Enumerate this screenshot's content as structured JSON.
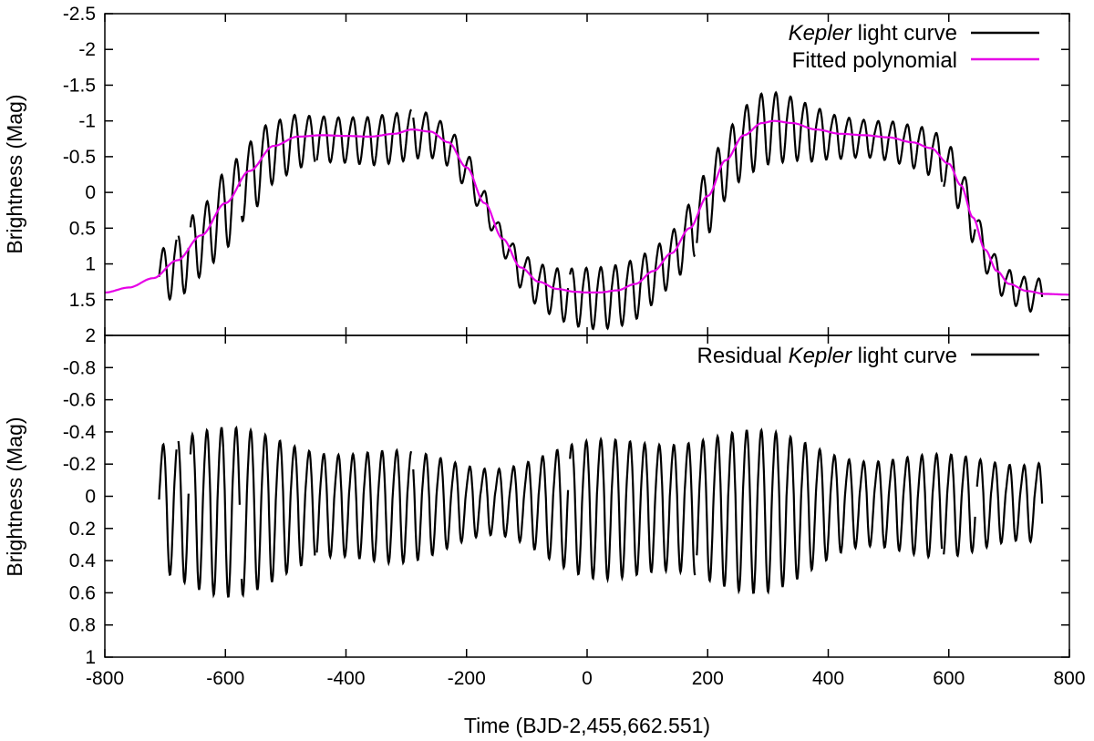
{
  "chart_data": [
    {
      "type": "line",
      "panel": "top",
      "ylabel": "Brightness (Mag)",
      "xlim": [
        -800,
        800
      ],
      "ylim": [
        -2.5,
        2
      ],
      "y_inverted": true,
      "grid": false,
      "legend_position": "top-right",
      "y_ticks": [
        "-2.5",
        "-2",
        "-1.5",
        "-1",
        "-0.5",
        "0",
        "0.5",
        "1",
        "1.5",
        "2"
      ],
      "y_tick_values": [
        -2.5,
        -2,
        -1.5,
        -1,
        -0.5,
        0,
        0.5,
        1,
        1.5,
        2
      ],
      "legend": [
        {
          "italic": "Kepler",
          "rest": " light curve",
          "color": "#000000"
        },
        {
          "italic": "",
          "rest": "Fitted polynomial",
          "color": "#e600e6"
        }
      ],
      "series": [
        {
          "name": "Kepler light curve",
          "color": "#000000",
          "description": "oscillation of ~24-day period around the fitted polynomial",
          "x_range": [
            -710,
            755
          ],
          "gaps": [
            -680,
            -660,
            -575,
            -450,
            -290,
            -30,
            180,
            590,
            645
          ]
        },
        {
          "name": "Fitted polynomial",
          "color": "#e600e6",
          "x": [
            -800,
            -760,
            -720,
            -680,
            -640,
            -600,
            -560,
            -520,
            -480,
            -440,
            -400,
            -360,
            -320,
            -290,
            -260,
            -230,
            -200,
            -170,
            -140,
            -110,
            -80,
            -50,
            -20,
            0,
            20,
            50,
            80,
            110,
            140,
            170,
            200,
            230,
            260,
            290,
            310,
            340,
            380,
            420,
            460,
            500,
            540,
            570,
            600,
            620,
            640,
            660,
            680,
            700,
            730,
            760,
            800
          ],
          "y": [
            1.4,
            1.33,
            1.2,
            0.95,
            0.6,
            0.15,
            -0.3,
            -0.65,
            -0.78,
            -0.8,
            -0.79,
            -0.78,
            -0.82,
            -0.88,
            -0.85,
            -0.7,
            -0.35,
            0.15,
            0.65,
            1.05,
            1.25,
            1.35,
            1.39,
            1.4,
            1.4,
            1.37,
            1.28,
            1.1,
            0.85,
            0.5,
            0.05,
            -0.45,
            -0.8,
            -0.97,
            -1.0,
            -0.97,
            -0.88,
            -0.82,
            -0.8,
            -0.77,
            -0.7,
            -0.62,
            -0.4,
            -0.1,
            0.35,
            0.8,
            1.1,
            1.28,
            1.38,
            1.42,
            1.43
          ]
        }
      ]
    },
    {
      "type": "line",
      "panel": "bottom",
      "xlabel": "Time (BJD-2,455,662.551)",
      "ylabel": "Brightness (Mag)",
      "xlim": [
        -800,
        800
      ],
      "ylim": [
        -1.0,
        1.0
      ],
      "y_inverted": true,
      "grid": false,
      "legend_position": "top-right",
      "x_ticks": [
        "-800",
        "-600",
        "-400",
        "-200",
        "0",
        "200",
        "400",
        "600",
        "800"
      ],
      "x_tick_values": [
        -800,
        -600,
        -400,
        -200,
        0,
        200,
        400,
        600,
        800
      ],
      "y_ticks": [
        "-0.8",
        "-0.6",
        "-0.4",
        "-0.2",
        "0",
        "0.2",
        "0.4",
        "0.6",
        "0.8",
        "1"
      ],
      "y_tick_values": [
        -0.8,
        -0.6,
        -0.4,
        -0.2,
        0,
        0.2,
        0.4,
        0.6,
        0.8,
        1
      ],
      "legend": [
        {
          "prefix": "Residual ",
          "italic": "Kepler",
          "rest": " light curve",
          "color": "#000000"
        }
      ],
      "series": [
        {
          "name": "Residual Kepler light curve",
          "color": "#000000",
          "description": "residual oscillation, amplitude ~0.3-0.6 mag, ~24-day period",
          "x_range": [
            -710,
            755
          ]
        }
      ]
    }
  ]
}
